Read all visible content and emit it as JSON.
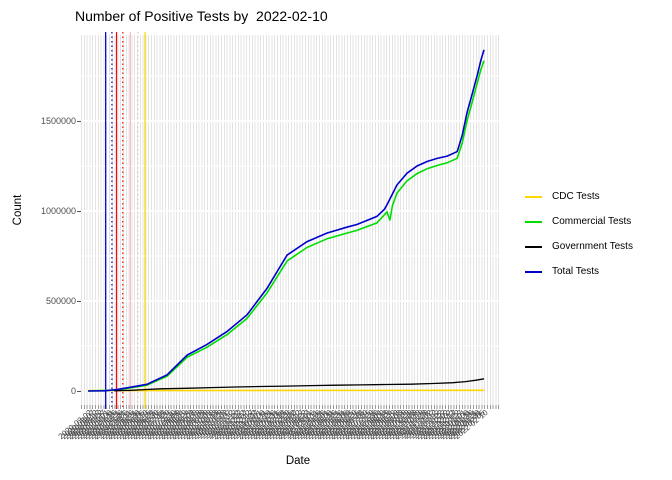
{
  "chart_data": {
    "type": "line",
    "title": "Number of Positive Tests by  2022-02-10",
    "xlabel": "Date",
    "ylabel": "Count",
    "ylim": [
      0,
      1900000
    ],
    "yticks": [
      0,
      500000,
      1000000,
      1500000
    ],
    "grid": "dense vertical date gridlines on light panel, horizontal lines at 250000 intervals",
    "x_axis": {
      "start_date": "2020-03-02",
      "end_date": "2022-02-10",
      "tick_step_days": 5,
      "labels_rotated_degrees": 40,
      "labels_overlapping_illegible": true
    },
    "series": [
      {
        "name": "CDC Tests",
        "color": "#FFD700",
        "points": [
          [
            0.017,
            2000
          ],
          [
            0.964,
            4000
          ]
        ]
      },
      {
        "name": "Commercial Tests",
        "color": "#00DD00",
        "points": [
          [
            0.017,
            0
          ],
          [
            0.086,
            5000
          ],
          [
            0.11,
            14000
          ],
          [
            0.158,
            33000
          ],
          [
            0.206,
            82000
          ],
          [
            0.254,
            188000
          ],
          [
            0.301,
            243000
          ],
          [
            0.349,
            313000
          ],
          [
            0.397,
            403000
          ],
          [
            0.445,
            545000
          ],
          [
            0.493,
            722000
          ],
          [
            0.541,
            798000
          ],
          [
            0.589,
            846000
          ],
          [
            0.636,
            877000
          ],
          [
            0.66,
            892000
          ],
          [
            0.708,
            934000
          ],
          [
            0.732,
            995000
          ],
          [
            0.739,
            948000
          ],
          [
            0.745,
            1030000
          ],
          [
            0.756,
            1100000
          ],
          [
            0.78,
            1168000
          ],
          [
            0.804,
            1208000
          ],
          [
            0.828,
            1235000
          ],
          [
            0.852,
            1253000
          ],
          [
            0.876,
            1268000
          ],
          [
            0.9,
            1293000
          ],
          [
            0.912,
            1378000
          ],
          [
            0.924,
            1505000
          ],
          [
            0.936,
            1605000
          ],
          [
            0.948,
            1712000
          ],
          [
            0.957,
            1788000
          ],
          [
            0.964,
            1835000
          ]
        ]
      },
      {
        "name": "Government Tests",
        "color": "#000000",
        "points": [
          [
            0.08,
            1000
          ],
          [
            0.12,
            4000
          ],
          [
            0.15,
            8000
          ],
          [
            0.19,
            12000
          ],
          [
            0.25,
            15000
          ],
          [
            0.31,
            19000
          ],
          [
            0.37,
            22000
          ],
          [
            0.43,
            25000
          ],
          [
            0.49,
            27000
          ],
          [
            0.55,
            30000
          ],
          [
            0.61,
            32000
          ],
          [
            0.67,
            34000
          ],
          [
            0.73,
            36000
          ],
          [
            0.79,
            38000
          ],
          [
            0.85,
            42000
          ],
          [
            0.89,
            46000
          ],
          [
            0.92,
            52000
          ],
          [
            0.945,
            60000
          ],
          [
            0.964,
            68000
          ]
        ]
      },
      {
        "name": "Total Tests",
        "color": "#0000CD",
        "points": [
          [
            0.017,
            0
          ],
          [
            0.057,
            1000
          ],
          [
            0.086,
            8000
          ],
          [
            0.11,
            18000
          ],
          [
            0.158,
            37000
          ],
          [
            0.206,
            90000
          ],
          [
            0.254,
            200000
          ],
          [
            0.301,
            258000
          ],
          [
            0.349,
            330000
          ],
          [
            0.397,
            422000
          ],
          [
            0.445,
            570000
          ],
          [
            0.493,
            755000
          ],
          [
            0.541,
            830000
          ],
          [
            0.589,
            878000
          ],
          [
            0.636,
            910000
          ],
          [
            0.66,
            925000
          ],
          [
            0.708,
            970000
          ],
          [
            0.726,
            1010000
          ],
          [
            0.732,
            1035000
          ],
          [
            0.756,
            1145000
          ],
          [
            0.78,
            1210000
          ],
          [
            0.804,
            1250000
          ],
          [
            0.828,
            1275000
          ],
          [
            0.852,
            1292000
          ],
          [
            0.876,
            1305000
          ],
          [
            0.9,
            1330000
          ],
          [
            0.912,
            1420000
          ],
          [
            0.924,
            1550000
          ],
          [
            0.936,
            1650000
          ],
          [
            0.948,
            1755000
          ],
          [
            0.957,
            1840000
          ],
          [
            0.964,
            1895000
          ]
        ]
      }
    ],
    "vlines": [
      {
        "x": 0.059,
        "color": "#0000CD",
        "style": "solid"
      },
      {
        "x": 0.074,
        "color": "#0000CD",
        "style": "dotted"
      },
      {
        "x": 0.085,
        "color": "#FF0000",
        "style": "solid"
      },
      {
        "x": 0.1,
        "color": "#FF0000",
        "style": "dotted"
      },
      {
        "x": 0.118,
        "color": "#FFB6C1",
        "style": "solid"
      },
      {
        "x": 0.136,
        "color": "#FFB6C1",
        "style": "dotted"
      },
      {
        "x": 0.153,
        "color": "#FFD700",
        "style": "solid"
      }
    ],
    "legend": {
      "position": "right",
      "entries": [
        {
          "label": "CDC Tests",
          "color": "#FFD700"
        },
        {
          "label": "Commercial Tests",
          "color": "#00DD00"
        },
        {
          "label": "Government Tests",
          "color": "#000000"
        },
        {
          "label": "Total Tests",
          "color": "#0000CD"
        }
      ]
    }
  }
}
